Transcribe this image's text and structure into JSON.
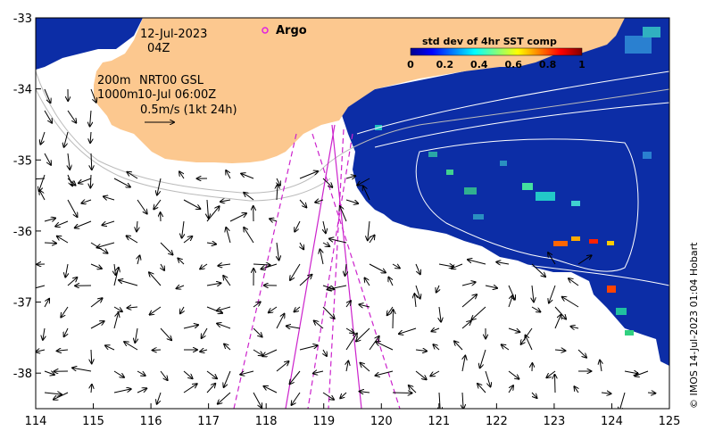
{
  "map": {
    "date": "12-Jul-2023",
    "hour": "04Z",
    "contour_label_1": "200m",
    "contour_label_2": "1000m",
    "current_label": "NRT00 GSL",
    "current_time": "10-Jul 06:00Z",
    "scale_label": "0.5m/s (1kt 24h)",
    "argo_label": "Argo",
    "credit": "© IMOS 14-Jul-2023 01:04 Hobart",
    "x_ticks": [
      "114",
      "115",
      "116",
      "117",
      "118",
      "119",
      "120",
      "121",
      "122",
      "123",
      "124",
      "125"
    ],
    "y_ticks": [
      "-33",
      "-34",
      "-35",
      "-36",
      "-37",
      "-38"
    ],
    "xlim": [
      114,
      125
    ],
    "ylim": [
      -38.5,
      -33
    ],
    "colorbar": {
      "title": "std dev of 4hr SST comp",
      "ticks": [
        "0",
        "0.2",
        "0.4",
        "0.6",
        "0.8",
        "1"
      ]
    },
    "colors": {
      "land": "#fcc88f",
      "ocean_blue": "#0c2da6",
      "argo": "#e020e0",
      "track": "#cc22cc"
    }
  }
}
